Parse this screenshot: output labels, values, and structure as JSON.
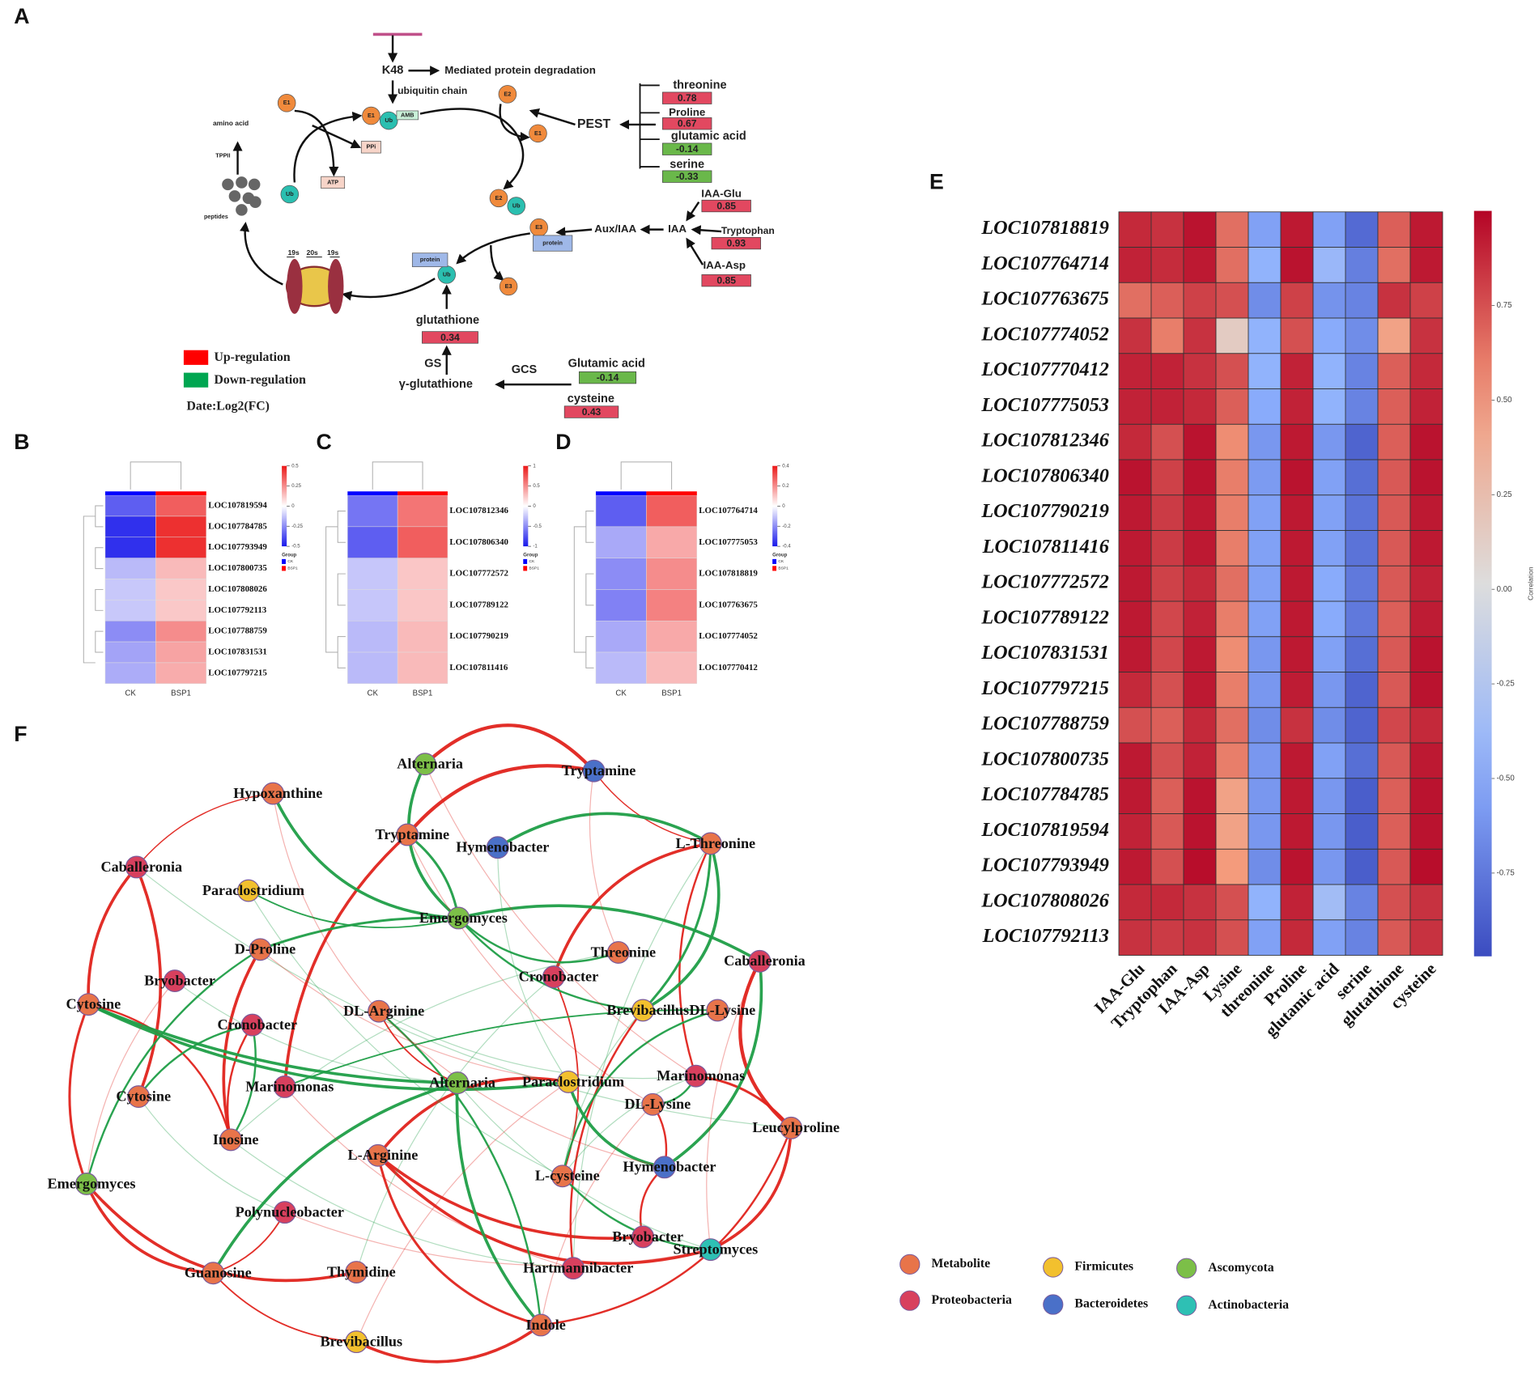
{
  "panel_labels": [
    "A",
    "B",
    "C",
    "D",
    "E",
    "F"
  ],
  "pathway": {
    "texts": [
      "K48",
      "Mediated protein degradation",
      "ubiquitin chain",
      "amino acid",
      "TPPII",
      "peptides",
      "19s",
      "20s",
      "19s",
      "PEST",
      "Aux/IAA",
      "IAA",
      "GS",
      "γ-glutathione",
      "GCS"
    ],
    "circles": [
      "E1",
      "E1",
      "Ub",
      "E2",
      "E1",
      "Ub",
      "E2",
      "Ub",
      "E3",
      "Ub",
      "E3"
    ],
    "boxes": [
      "AMB",
      "PPi",
      "ATP",
      "protein",
      "protein"
    ],
    "metabolites": [
      {
        "name": "threonine",
        "value": 0.78
      },
      {
        "name": "Proline",
        "value": 0.67
      },
      {
        "name": "glutamic acid",
        "value": -0.14
      },
      {
        "name": "serine",
        "value": -0.33
      },
      {
        "name": "IAA-Glu",
        "value": 0.85
      },
      {
        "name": "Tryptophan",
        "value": 0.93
      },
      {
        "name": "IAA-Asp",
        "value": 0.85
      },
      {
        "name": "glutathione",
        "value": 0.34
      },
      {
        "name": "Glutamic acid",
        "value": -0.14
      },
      {
        "name": "cysteine",
        "value": 0.43
      }
    ],
    "legend": [
      {
        "label": "Up-regulation",
        "color": "#ff0000"
      },
      {
        "label": "Down-regulation",
        "color": "#00a651"
      }
    ],
    "note": "Date:Log2(FC)"
  },
  "chart_data": [
    {
      "type": "heatmap",
      "colormap": "bwr",
      "columns": [
        "CK",
        "BSP1"
      ],
      "rows": [
        "LOC107819594",
        "LOC107784785",
        "LOC107793949",
        "LOC107800735",
        "LOC107808026",
        "LOC107792113",
        "LOC107788759",
        "LOC107831531",
        "LOC107797215"
      ],
      "values": [
        [
          -0.35,
          0.35
        ],
        [
          -0.45,
          0.45
        ],
        [
          -0.45,
          0.45
        ],
        [
          -0.15,
          0.15
        ],
        [
          -0.12,
          0.12
        ],
        [
          -0.12,
          0.12
        ],
        [
          -0.25,
          0.25
        ],
        [
          -0.2,
          0.2
        ],
        [
          -0.18,
          0.18
        ]
      ],
      "clim": [
        -0.5,
        0.5
      ],
      "cticks": [
        0.5,
        0.25,
        0,
        -0.25,
        -0.5
      ],
      "legend_title": "Group",
      "legend": [
        {
          "name": "CK",
          "color": "#0000ff"
        },
        {
          "name": "BSP1",
          "color": "#ff0000"
        }
      ]
    },
    {
      "type": "heatmap",
      "colormap": "bwr",
      "columns": [
        "CK",
        "BSP1"
      ],
      "rows": [
        "LOC107812346",
        "LOC107806340",
        "LOC107772572",
        "LOC107789122",
        "LOC107790219",
        "LOC107811416"
      ],
      "values": [
        [
          -0.6,
          0.6
        ],
        [
          -0.7,
          0.7
        ],
        [
          -0.25,
          0.25
        ],
        [
          -0.25,
          0.25
        ],
        [
          -0.3,
          0.3
        ],
        [
          -0.3,
          0.3
        ]
      ],
      "clim": [
        -1,
        1
      ],
      "cticks": [
        1,
        0.5,
        0,
        -0.5,
        -1
      ],
      "legend_title": "Group",
      "legend": [
        {
          "name": "CK",
          "color": "#0000ff"
        },
        {
          "name": "BSP1",
          "color": "#ff0000"
        }
      ]
    },
    {
      "type": "heatmap",
      "colormap": "bwr",
      "columns": [
        "CK",
        "BSP1"
      ],
      "rows": [
        "LOC107764714",
        "LOC107775053",
        "LOC107818819",
        "LOC107763675",
        "LOC107774052",
        "LOC107770412"
      ],
      "values": [
        [
          -0.28,
          0.28
        ],
        [
          -0.15,
          0.15
        ],
        [
          -0.2,
          0.2
        ],
        [
          -0.22,
          0.22
        ],
        [
          -0.15,
          0.15
        ],
        [
          -0.12,
          0.12
        ]
      ],
      "clim": [
        -0.4,
        0.4
      ],
      "cticks": [
        0.4,
        0.2,
        0,
        -0.2,
        -0.4
      ],
      "legend_title": "Group",
      "legend": [
        {
          "name": "CK",
          "color": "#0000ff"
        },
        {
          "name": "BSP1",
          "color": "#ff0000"
        }
      ]
    },
    {
      "type": "heatmap",
      "colormap": "coolwarm",
      "colorbar_label": "Correlation",
      "columns": [
        "IAA-Glu",
        "Tryptophan",
        "IAA-Asp",
        "Lysine",
        "threonine",
        "Proline",
        "glutamic acid",
        "serine",
        "glutathione",
        "cysteine"
      ],
      "rows": [
        "LOC107818819",
        "LOC107764714",
        "LOC107763675",
        "LOC107774052",
        "LOC107770412",
        "LOC107775053",
        "LOC107812346",
        "LOC107806340",
        "LOC107790219",
        "LOC107811416",
        "LOC107772572",
        "LOC107789122",
        "LOC107831531",
        "LOC107797215",
        "LOC107788759",
        "LOC107800735",
        "LOC107784785",
        "LOC107819594",
        "LOC107793949",
        "LOC107808026",
        "LOC107792113"
      ],
      "values": [
        [
          0.88,
          0.85,
          0.95,
          0.65,
          -0.55,
          0.93,
          -0.55,
          -0.82,
          0.7,
          0.93
        ],
        [
          0.9,
          0.87,
          0.93,
          0.65,
          -0.45,
          0.95,
          -0.4,
          -0.72,
          0.65,
          0.93
        ],
        [
          0.65,
          0.7,
          0.8,
          0.75,
          -0.65,
          0.8,
          -0.62,
          -0.7,
          0.85,
          0.8
        ],
        [
          0.85,
          0.6,
          0.85,
          0.15,
          -0.45,
          0.75,
          -0.5,
          -0.65,
          0.45,
          0.85
        ],
        [
          0.9,
          0.9,
          0.85,
          0.75,
          -0.45,
          0.9,
          -0.45,
          -0.7,
          0.7,
          0.88
        ],
        [
          0.9,
          0.9,
          0.88,
          0.7,
          -0.5,
          0.9,
          -0.45,
          -0.7,
          0.7,
          0.9
        ],
        [
          0.88,
          0.75,
          0.95,
          0.55,
          -0.6,
          0.93,
          -0.6,
          -0.85,
          0.7,
          0.95
        ],
        [
          0.95,
          0.8,
          0.95,
          0.6,
          -0.58,
          0.95,
          -0.55,
          -0.8,
          0.72,
          0.95
        ],
        [
          0.93,
          0.82,
          0.93,
          0.6,
          -0.55,
          0.93,
          -0.55,
          -0.78,
          0.72,
          0.93
        ],
        [
          0.93,
          0.82,
          0.93,
          0.6,
          -0.55,
          0.93,
          -0.55,
          -0.78,
          0.72,
          0.93
        ],
        [
          0.93,
          0.8,
          0.88,
          0.65,
          -0.55,
          0.93,
          -0.5,
          -0.75,
          0.72,
          0.9
        ],
        [
          0.93,
          0.78,
          0.9,
          0.6,
          -0.55,
          0.93,
          -0.5,
          -0.75,
          0.7,
          0.92
        ],
        [
          0.93,
          0.78,
          0.93,
          0.55,
          -0.6,
          0.93,
          -0.55,
          -0.8,
          0.72,
          0.95
        ],
        [
          0.88,
          0.75,
          0.93,
          0.6,
          -0.6,
          0.92,
          -0.6,
          -0.85,
          0.72,
          0.95
        ],
        [
          0.75,
          0.7,
          0.88,
          0.65,
          -0.65,
          0.85,
          -0.65,
          -0.85,
          0.78,
          0.88
        ],
        [
          0.93,
          0.75,
          0.9,
          0.6,
          -0.6,
          0.93,
          -0.55,
          -0.8,
          0.72,
          0.93
        ],
        [
          0.93,
          0.7,
          0.95,
          0.45,
          -0.6,
          0.93,
          -0.6,
          -0.88,
          0.7,
          0.95
        ],
        [
          0.9,
          0.72,
          0.95,
          0.45,
          -0.6,
          0.93,
          -0.6,
          -0.88,
          0.7,
          0.95
        ],
        [
          0.93,
          0.75,
          0.97,
          0.5,
          -0.65,
          0.95,
          -0.6,
          -0.88,
          0.72,
          0.97
        ],
        [
          0.88,
          0.88,
          0.85,
          0.75,
          -0.45,
          0.9,
          -0.35,
          -0.7,
          0.75,
          0.85
        ],
        [
          0.85,
          0.82,
          0.85,
          0.75,
          -0.55,
          0.88,
          -0.55,
          -0.7,
          0.72,
          0.85
        ]
      ],
      "clim": [
        -0.97,
        1.0
      ],
      "cticks": [
        0.75,
        {
          "value": 0.5,
          "label": "0.50"
        },
        0.25,
        {
          "value": 0,
          "label": "0.00"
        },
        -0.25,
        {
          "value": -0.5,
          "label": "-0.50"
        },
        -0.75
      ]
    }
  ],
  "network": {
    "groups": [
      {
        "name": "Metabolite",
        "color": "#e8744a"
      },
      {
        "name": "Proteobacteria",
        "color": "#d8405e"
      },
      {
        "name": "Firmicutes",
        "color": "#f2c02e"
      },
      {
        "name": "Bacteroidetes",
        "color": "#4a70c8"
      },
      {
        "name": "Ascomycota",
        "color": "#7cbf48"
      },
      {
        "name": "Actinobacteria",
        "color": "#2ec0b4"
      }
    ],
    "nodes": [
      {
        "label": "Alternaria",
        "group": "Ascomycota"
      },
      {
        "label": "Tryptamine",
        "group": "Bacteroidetes"
      },
      {
        "label": "Hypoxanthine",
        "group": "Metabolite"
      },
      {
        "label": "Tryptamine",
        "group": "Metabolite"
      },
      {
        "label": "Hymenobacter",
        "group": "Bacteroidetes"
      },
      {
        "label": "L-Threonine",
        "group": "Metabolite"
      },
      {
        "label": "Caballeronia",
        "group": "Proteobacteria"
      },
      {
        "label": "Paraclostridium",
        "group": "Firmicutes"
      },
      {
        "label": "Emergomyces",
        "group": "Ascomycota"
      },
      {
        "label": "D-Proline",
        "group": "Metabolite"
      },
      {
        "label": "Threonine",
        "group": "Metabolite"
      },
      {
        "label": "Caballeronia",
        "group": "Proteobacteria"
      },
      {
        "label": "Bryobacter",
        "group": "Proteobacteria"
      },
      {
        "label": "Cronobacter",
        "group": "Proteobacteria"
      },
      {
        "label": "Cytosine",
        "group": "Metabolite"
      },
      {
        "label": "DL-Arginine",
        "group": "Metabolite"
      },
      {
        "label": "Brevibacillus",
        "group": "Firmicutes"
      },
      {
        "label": "DL-Lysine",
        "group": "Metabolite"
      },
      {
        "label": "Cronobacter",
        "group": "Proteobacteria"
      },
      {
        "label": "Marinomonas",
        "group": "Proteobacteria"
      },
      {
        "label": "Marinomonas",
        "group": "Proteobacteria"
      },
      {
        "label": "Alternaria",
        "group": "Ascomycota"
      },
      {
        "label": "Paraclostridium",
        "group": "Firmicutes"
      },
      {
        "label": "Cytosine",
        "group": "Metabolite"
      },
      {
        "label": "DL-Lysine",
        "group": "Metabolite"
      },
      {
        "label": "Leucylproline",
        "group": "Metabolite"
      },
      {
        "label": "Inosine",
        "group": "Metabolite"
      },
      {
        "label": "L-Arginine",
        "group": "Metabolite"
      },
      {
        "label": "Hymenobacter",
        "group": "Bacteroidetes"
      },
      {
        "label": "L-cysteine",
        "group": "Metabolite"
      },
      {
        "label": "Emergomyces",
        "group": "Ascomycota"
      },
      {
        "label": "Polynucleobacter",
        "group": "Proteobacteria"
      },
      {
        "label": "Bryobacter",
        "group": "Proteobacteria"
      },
      {
        "label": "Streptomyces",
        "group": "Actinobacteria"
      },
      {
        "label": "Guanosine",
        "group": "Metabolite"
      },
      {
        "label": "Thymidine",
        "group": "Metabolite"
      },
      {
        "label": "Hartmannibacter",
        "group": "Proteobacteria"
      },
      {
        "label": "Indole",
        "group": "Metabolite"
      },
      {
        "label": "Brevibacillus",
        "group": "Firmicutes"
      }
    ]
  }
}
